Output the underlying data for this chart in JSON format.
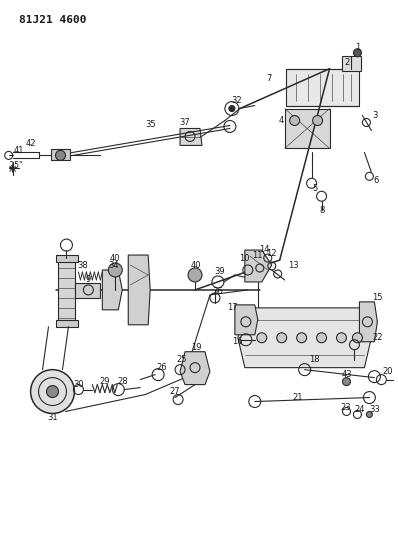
{
  "title": "81J21 4600",
  "bg_color": "#ffffff",
  "line_color": "#2a2a2a",
  "text_color": "#1a1a1a",
  "fig_width": 3.98,
  "fig_height": 5.33,
  "dpi": 100
}
